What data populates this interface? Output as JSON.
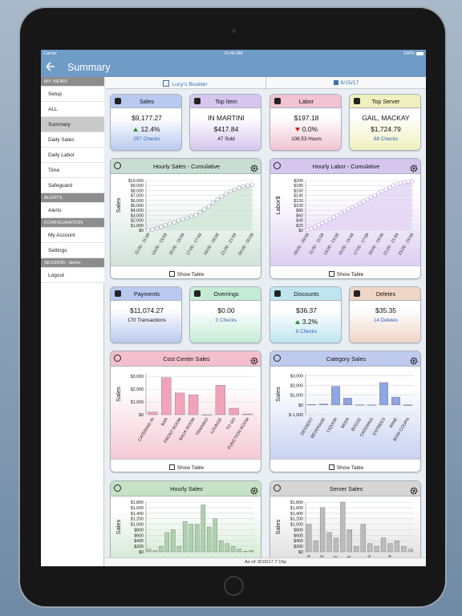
{
  "status_bar": {
    "carrier": "Carrier",
    "time": "10:40 AM",
    "battery": "100%"
  },
  "nav": {
    "title": "Summary"
  },
  "sidebar": {
    "items": [
      {
        "label": "MY VIEWS",
        "kind": "section"
      },
      {
        "label": "Setup"
      },
      {
        "label": "ALL"
      },
      {
        "label": "Summary",
        "selected": true
      },
      {
        "label": "Daily Sales"
      },
      {
        "label": "Daily Labor"
      },
      {
        "label": "Time"
      },
      {
        "label": "Safeguard"
      },
      {
        "label": "ALERTS",
        "kind": "section"
      },
      {
        "label": "Alerts"
      },
      {
        "label": "CONFIGURATION",
        "kind": "section"
      },
      {
        "label": "My Account"
      },
      {
        "label": "Settings"
      },
      {
        "label": "SESSION - demo",
        "kind": "section"
      },
      {
        "label": "Logout"
      }
    ]
  },
  "header": {
    "location": "Lucy's Boulder",
    "date": "8/15/17"
  },
  "cards": [
    {
      "title": "Sales",
      "value": "$9,177.27",
      "change": "12.4%",
      "trend": "up",
      "detail": "257 Checks",
      "detail_link": true,
      "color": "#b9c9ef"
    },
    {
      "title": "Top Item",
      "name": "IN MARTINI",
      "value": "$417.84",
      "detail": "47 Sold",
      "color": "#d6c6ef"
    },
    {
      "title": "Labor",
      "value": "$197.18",
      "change": "0.0%",
      "trend": "down",
      "detail": "108.53 Hours",
      "color": "#f1c3d3"
    },
    {
      "title": "Top Server",
      "name": "GAIL, MACKAY",
      "value": "$1,724.79",
      "detail": "68 Checks",
      "detail_link": true,
      "color": "#eff0bd"
    },
    {
      "title": "Payments",
      "value": "$11,074.27",
      "detail": "170 Transactions",
      "color": "#b9c9ef"
    },
    {
      "title": "Overrings",
      "value": "$0.00",
      "detail": "0 Checks",
      "detail_link": true,
      "color": "#c4ecd4"
    },
    {
      "title": "Discounts",
      "value": "$36.37",
      "change": "3.2%",
      "trend": "up",
      "detail": "8 Checks",
      "detail_link": true,
      "color": "#bfe6f0"
    },
    {
      "title": "Deletes",
      "value": "$35.35",
      "detail": "14 Deletes",
      "detail_link": true,
      "color": "#efd6c6"
    }
  ],
  "charts": [
    {
      "type": "line",
      "title": "Hourly Sales - Cumulative",
      "ylabel": "Sales",
      "footer": "Show Table",
      "color": "#9aaab2",
      "fill": "#cfe6d6",
      "panel_color": "#c9ded3",
      "x": [
        "11:00 - 11:59",
        null,
        null,
        null,
        "13:00 - 13:59",
        null,
        null,
        null,
        "15:00 - 15:59",
        null,
        null,
        null,
        "17:00 - 17:59",
        null,
        null,
        null,
        "19:00 - 19:59",
        null,
        null,
        null,
        "21:00 - 21:59",
        null,
        null,
        null,
        "00:00 - 00:59"
      ],
      "values": [
        0,
        150,
        400,
        700,
        1000,
        1300,
        1600,
        1900,
        2200,
        2500,
        2800,
        3100,
        3600,
        4200,
        4800,
        5500,
        6200,
        6800,
        7300,
        7800,
        8200,
        8500,
        8800,
        9000,
        9177
      ],
      "ylim": [
        0,
        10000
      ],
      "yticks": [
        {
          "value": 0,
          "label": "$0"
        },
        {
          "value": 1000,
          "label": "$1,000"
        },
        {
          "value": 2000,
          "label": "$2,000"
        },
        {
          "value": 3000,
          "label": "$3,000"
        },
        {
          "value": 4000,
          "label": "$4,000"
        },
        {
          "value": 5000,
          "label": "$5,000"
        },
        {
          "value": 6000,
          "label": "$6,000"
        },
        {
          "value": 7000,
          "label": "$7,000"
        },
        {
          "value": 8000,
          "label": "$8,000"
        },
        {
          "value": 9000,
          "label": "$9,000"
        },
        {
          "value": 10000,
          "label": "$10,000"
        }
      ]
    },
    {
      "type": "line",
      "title": "Hourly Labor - Cumulative",
      "ylabel": "Labor$",
      "footer": "Show Table",
      "color": "#c4a8e8",
      "fill": "#e2d4f4",
      "panel_color": "#d6c6ef",
      "x": [
        "09:00 - 09:59",
        null,
        null,
        null,
        "11:00 - 11:59",
        null,
        null,
        null,
        "13:00 - 13:59",
        null,
        null,
        null,
        "15:00 - 15:59",
        null,
        null,
        null,
        "17:00 - 17:59",
        null,
        null,
        null,
        "19:00 - 19:59",
        null,
        null,
        null,
        "21:00 - 21:59",
        null,
        null,
        null,
        "23:00 - 23:59"
      ],
      "values": [
        2,
        6,
        12,
        20,
        28,
        36,
        44,
        52,
        60,
        68,
        76,
        84,
        92,
        100,
        108,
        116,
        124,
        132,
        140,
        148,
        156,
        164,
        172,
        180,
        186,
        190,
        194,
        196,
        197
      ],
      "ylim": [
        0,
        200
      ],
      "yticks": [
        {
          "value": 0,
          "label": "$0"
        },
        {
          "value": 20,
          "label": "$20"
        },
        {
          "value": 40,
          "label": "$40"
        },
        {
          "value": 60,
          "label": "$60"
        },
        {
          "value": 80,
          "label": "$80"
        },
        {
          "value": 100,
          "label": "$100"
        },
        {
          "value": 120,
          "label": "$120"
        },
        {
          "value": 140,
          "label": "$140"
        },
        {
          "value": 160,
          "label": "$160"
        },
        {
          "value": 180,
          "label": "$180"
        },
        {
          "value": 200,
          "label": "$200"
        }
      ]
    },
    {
      "type": "bar",
      "title": "Cost Center Sales",
      "ylabel": "Sales",
      "footer": "Show Table",
      "color": "#f2a3bb",
      "panel_color": "#f3bfcd",
      "categories": [
        "CATERING IN",
        "BAR",
        "FRONT ROOM",
        "BACK ROOM",
        "TRAINING",
        "LOUNGE",
        "TO GO",
        "FUNCTION ROOM"
      ],
      "values": [
        200,
        2900,
        1700,
        1550,
        0,
        2300,
        500,
        60
      ],
      "ylim": [
        0,
        3200
      ],
      "yticks": [
        {
          "value": 0,
          "label": "$0"
        },
        {
          "value": 1000,
          "label": "$1,000"
        },
        {
          "value": 2000,
          "label": "$2,000"
        },
        {
          "value": 3000,
          "label": "$3,000"
        }
      ]
    },
    {
      "type": "bar",
      "title": "Category Sales",
      "ylabel": "Sales",
      "footer": "Show Table",
      "color": "#8ea6e2",
      "panel_color": "#bfcaef",
      "categories": [
        "DESSERT",
        "BEVERAGE",
        "LIQUOR",
        "BEER",
        "BOOZE",
        "CATERING",
        "ENTREES",
        "WINE",
        "BOW COUPN"
      ],
      "values": [
        50,
        100,
        1900,
        700,
        0,
        0,
        2300,
        800,
        -60
      ],
      "ylim": [
        -1000,
        3200
      ],
      "yticks": [
        {
          "value": -1000,
          "label": "$-1,000"
        },
        {
          "value": 0,
          "label": "$0"
        },
        {
          "value": 1000,
          "label": "$1,000"
        },
        {
          "value": 2000,
          "label": "$2,000"
        },
        {
          "value": 3000,
          "label": "$3,000"
        }
      ]
    },
    {
      "type": "bar",
      "title": "Hourly Sales",
      "ylabel": "Sales",
      "color": "#acd3ac",
      "panel_color": "#c6e3c6",
      "values": [
        100,
        50,
        200,
        700,
        800,
        200,
        1100,
        1000,
        1000,
        1700,
        900,
        1200,
        400,
        300,
        200,
        100,
        20,
        50
      ],
      "ylim": [
        0,
        1800
      ],
      "yticks": [
        {
          "value": 0,
          "label": "$0"
        },
        {
          "value": 200,
          "label": "$200"
        },
        {
          "value": 400,
          "label": "$400"
        },
        {
          "value": 600,
          "label": "$600"
        },
        {
          "value": 800,
          "label": "$800"
        },
        {
          "value": 1000,
          "label": "$1,000"
        },
        {
          "value": 1200,
          "label": "$1,200"
        },
        {
          "value": 1400,
          "label": "$1,400"
        },
        {
          "value": 1600,
          "label": "$1,600"
        },
        {
          "value": 1800,
          "label": "$1,800"
        }
      ]
    },
    {
      "type": "bar",
      "title": "Server Sales",
      "ylabel": "Sales",
      "color": "#bcbcbc",
      "panel_color": "#d6d6d6",
      "categories": [
        "MELISSA",
        null,
        "PATTIE",
        null,
        "Y, GAIL",
        null,
        "CAROL",
        null,
        null,
        "SARAH",
        null,
        null,
        "JESSICA",
        null,
        null,
        null
      ],
      "values": [
        1000,
        400,
        1600,
        700,
        500,
        1800,
        800,
        200,
        1000,
        300,
        200,
        500,
        300,
        400,
        200,
        100
      ],
      "ylim": [
        0,
        1800
      ],
      "yticks": [
        {
          "value": 0,
          "label": "$0"
        },
        {
          "value": 200,
          "label": "$200"
        },
        {
          "value": 400,
          "label": "$400"
        },
        {
          "value": 600,
          "label": "$600"
        },
        {
          "value": 800,
          "label": "$800"
        },
        {
          "value": 1000,
          "label": "$1,000"
        },
        {
          "value": 1200,
          "label": "$1,200"
        },
        {
          "value": 1400,
          "label": "$1,400"
        },
        {
          "value": 1600,
          "label": "$1,600"
        },
        {
          "value": 1800,
          "label": "$1,800"
        }
      ]
    }
  ],
  "footer": "As of: 8/15/17 7:15p"
}
